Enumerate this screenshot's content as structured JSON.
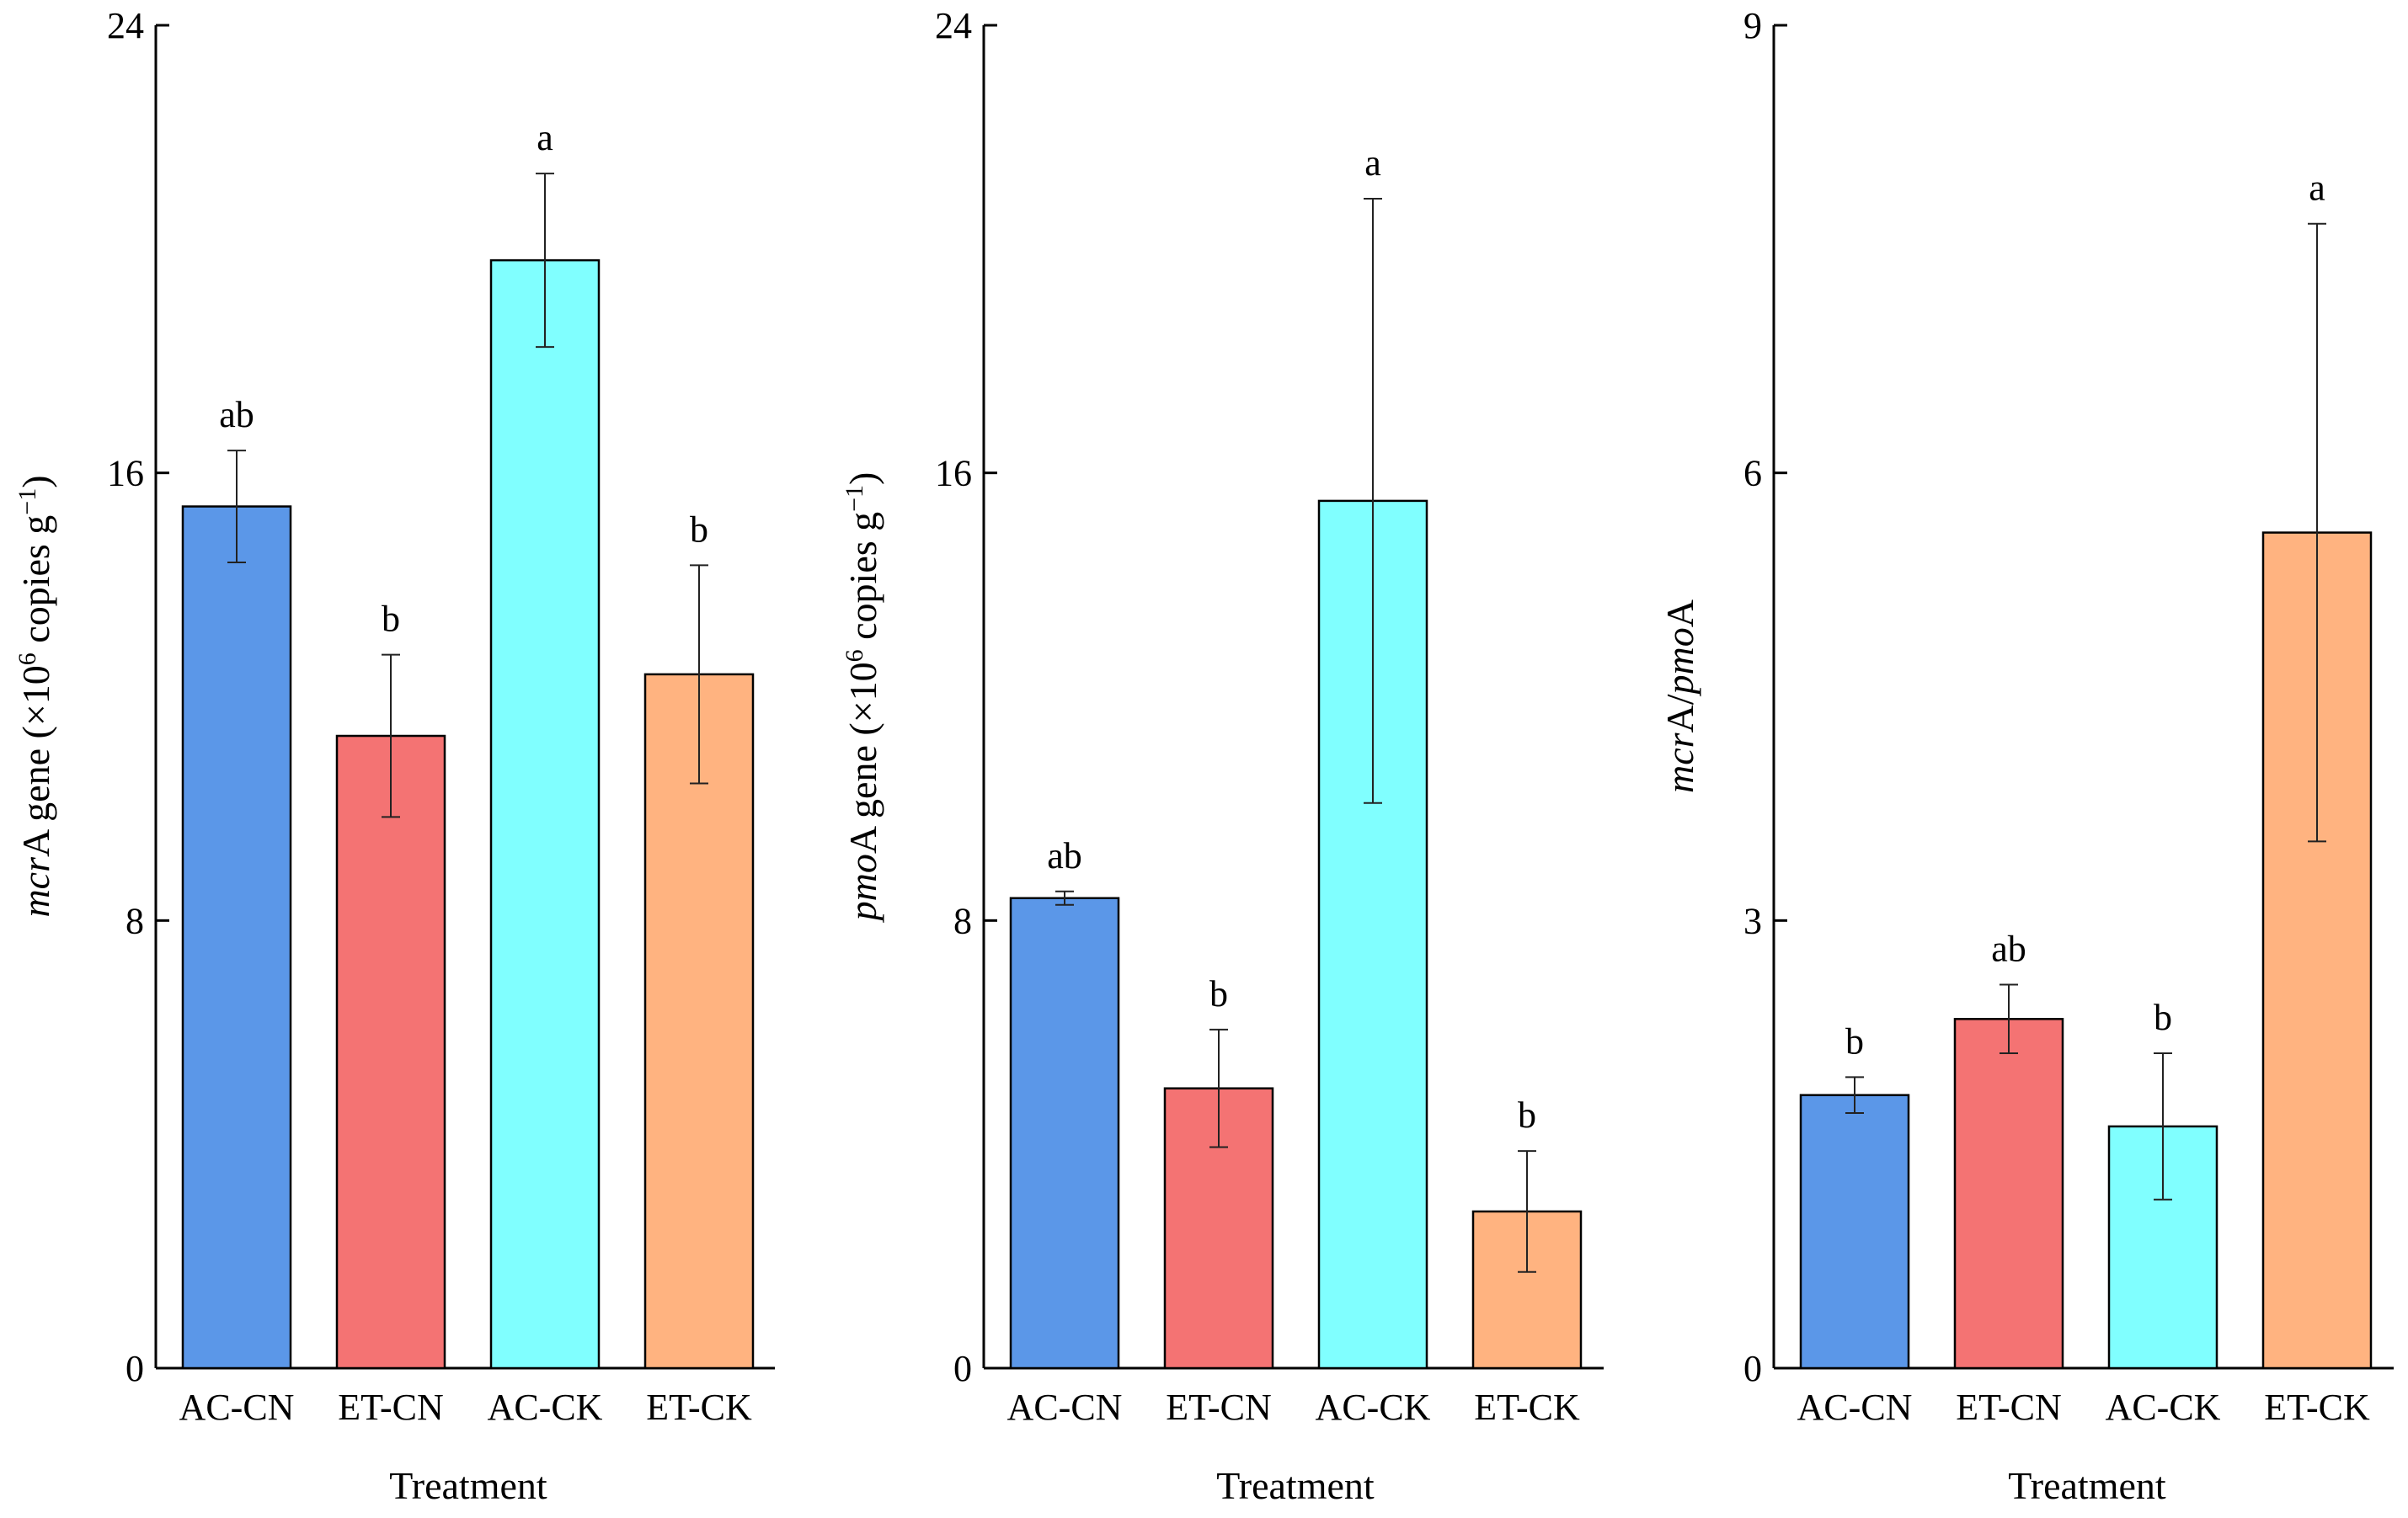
{
  "chart_data": [
    {
      "type": "bar",
      "panel": "mcrA",
      "categories": [
        "AC-CN",
        "ET-CN",
        "AC-CK",
        "ET-CK"
      ],
      "values": [
        15.4,
        11.3,
        19.8,
        12.4
      ],
      "errors": [
        1.0,
        1.45,
        1.55,
        1.95
      ],
      "significance": [
        "ab",
        "b",
        "a",
        "b"
      ],
      "colors": [
        "#5b97e8",
        "#f47373",
        "#80ffff",
        "#ffb380"
      ],
      "ylim": [
        0,
        24
      ],
      "yticks": [
        "0",
        "8",
        "16",
        "24"
      ],
      "ylabel": {
        "italic": "mcr",
        "rest": "A gene (×10",
        "sup1": "6",
        "mid": " copies g",
        "sup2": "−1",
        "end": ")"
      },
      "xlabel": "Treatment"
    },
    {
      "type": "bar",
      "panel": "pmoA",
      "categories": [
        "AC-CN",
        "ET-CN",
        "AC-CK",
        "ET-CK"
      ],
      "values": [
        8.4,
        5.0,
        15.5,
        2.8
      ],
      "errors": [
        0.12,
        1.05,
        5.4,
        1.08
      ],
      "significance": [
        "ab",
        "b",
        "a",
        "b"
      ],
      "colors": [
        "#5b97e8",
        "#f47373",
        "#80ffff",
        "#ffb380"
      ],
      "ylim": [
        0,
        24
      ],
      "yticks": [
        "0",
        "8",
        "16",
        "24"
      ],
      "ylabel": {
        "italic": "pmo",
        "rest": "A gene (×10",
        "sup1": "6",
        "mid": " copies g",
        "sup2": "−1",
        "end": ")"
      },
      "xlabel": "Treatment"
    },
    {
      "type": "bar",
      "panel": "ratio",
      "categories": [
        "AC-CN",
        "ET-CN",
        "AC-CK",
        "ET-CK"
      ],
      "values": [
        1.83,
        2.34,
        1.62,
        5.6
      ],
      "errors": [
        0.12,
        0.23,
        0.49,
        2.07
      ],
      "significance": [
        "b",
        "ab",
        "b",
        "a"
      ],
      "colors": [
        "#5b97e8",
        "#f47373",
        "#80ffff",
        "#ffb380"
      ],
      "ylim": [
        0,
        9
      ],
      "yticks": [
        "0",
        "3",
        "6",
        "9"
      ],
      "ylabel": {
        "italic1": "mcr",
        "a1": "A/",
        "italic2": "pmo",
        "a2": "A"
      },
      "xlabel": "Treatment"
    }
  ]
}
